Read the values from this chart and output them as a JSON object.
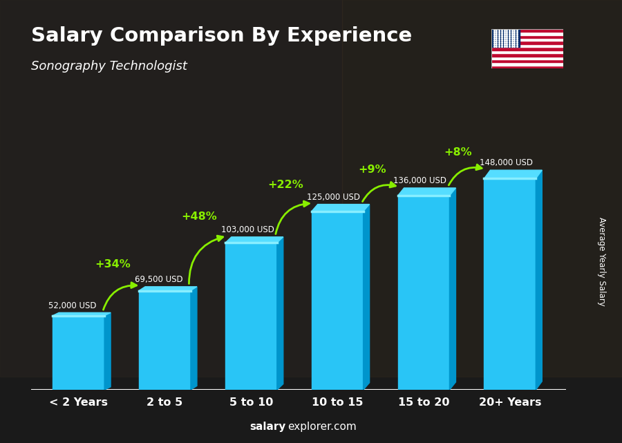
{
  "title": "Salary Comparison By Experience",
  "subtitle": "Sonography Technologist",
  "categories": [
    "< 2 Years",
    "2 to 5",
    "5 to 10",
    "10 to 15",
    "15 to 20",
    "20+ Years"
  ],
  "values": [
    52000,
    69500,
    103000,
    125000,
    136000,
    148000
  ],
  "labels": [
    "52,000 USD",
    "69,500 USD",
    "103,000 USD",
    "125,000 USD",
    "136,000 USD",
    "148,000 USD"
  ],
  "pct_labels": [
    "+34%",
    "+48%",
    "+22%",
    "+9%",
    "+8%"
  ],
  "bar_color_main": "#29C5F6",
  "bar_color_left": "#45D5FF",
  "bar_color_right": "#0095CC",
  "bar_color_top": "#55DDFF",
  "bar_color_top_cap": "#88EEFF",
  "pct_color": "#88EE00",
  "salary_label_color": "#FFFFFF",
  "title_color": "#FFFFFF",
  "subtitle_color": "#FFFFFF",
  "bg_color": "#000000",
  "footer_bold": "salary",
  "footer_normal": "explorer.com",
  "ylabel_text": "Average Yearly Salary",
  "ylim_max": 180000,
  "bar_width": 0.6
}
